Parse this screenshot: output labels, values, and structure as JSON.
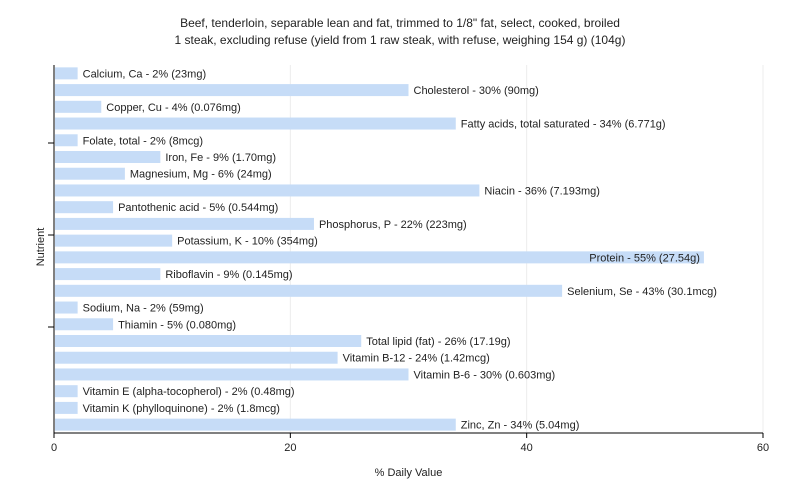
{
  "chart_data": {
    "type": "bar",
    "orientation": "horizontal",
    "title_lines": [
      "Beef, tenderloin, separable lean and fat, trimmed to 1/8\" fat, select, cooked, broiled",
      "1 steak, excluding refuse (yield from 1 raw steak, with refuse, weighing 154 g) (104g)"
    ],
    "xlabel": "% Daily Value",
    "ylabel": "Nutrient",
    "xlim": [
      0,
      60
    ],
    "xticks": [
      0,
      20,
      40,
      60
    ],
    "grid": true,
    "bar_color": "#c6dcf7",
    "bars": [
      {
        "value": 2,
        "label": "Calcium, Ca - 2% (23mg)"
      },
      {
        "value": 30,
        "label": "Cholesterol - 30% (90mg)"
      },
      {
        "value": 4,
        "label": "Copper, Cu - 4% (0.076mg)"
      },
      {
        "value": 34,
        "label": "Fatty acids, total saturated - 34% (6.771g)"
      },
      {
        "value": 2,
        "label": "Folate, total - 2% (8mcg)"
      },
      {
        "value": 9,
        "label": "Iron, Fe - 9% (1.70mg)"
      },
      {
        "value": 6,
        "label": "Magnesium, Mg - 6% (24mg)"
      },
      {
        "value": 36,
        "label": "Niacin - 36% (7.193mg)"
      },
      {
        "value": 5,
        "label": "Pantothenic acid - 5% (0.544mg)"
      },
      {
        "value": 22,
        "label": "Phosphorus, P - 22% (223mg)"
      },
      {
        "value": 10,
        "label": "Potassium, K - 10% (354mg)"
      },
      {
        "value": 55,
        "label": "Protein - 55% (27.54g)"
      },
      {
        "value": 9,
        "label": "Riboflavin - 9% (0.145mg)"
      },
      {
        "value": 43,
        "label": "Selenium, Se - 43% (30.1mcg)"
      },
      {
        "value": 2,
        "label": "Sodium, Na - 2% (59mg)"
      },
      {
        "value": 5,
        "label": "Thiamin - 5% (0.080mg)"
      },
      {
        "value": 26,
        "label": "Total lipid (fat) - 26% (17.19g)"
      },
      {
        "value": 24,
        "label": "Vitamin B-12 - 24% (1.42mcg)"
      },
      {
        "value": 30,
        "label": "Vitamin B-6 - 30% (0.603mg)"
      },
      {
        "value": 2,
        "label": "Vitamin E (alpha-tocopherol) - 2% (0.48mg)"
      },
      {
        "value": 2,
        "label": "Vitamin K (phylloquinone) - 2% (1.8mcg)"
      },
      {
        "value": 34,
        "label": "Zinc, Zn - 34% (5.04mg)"
      }
    ]
  }
}
